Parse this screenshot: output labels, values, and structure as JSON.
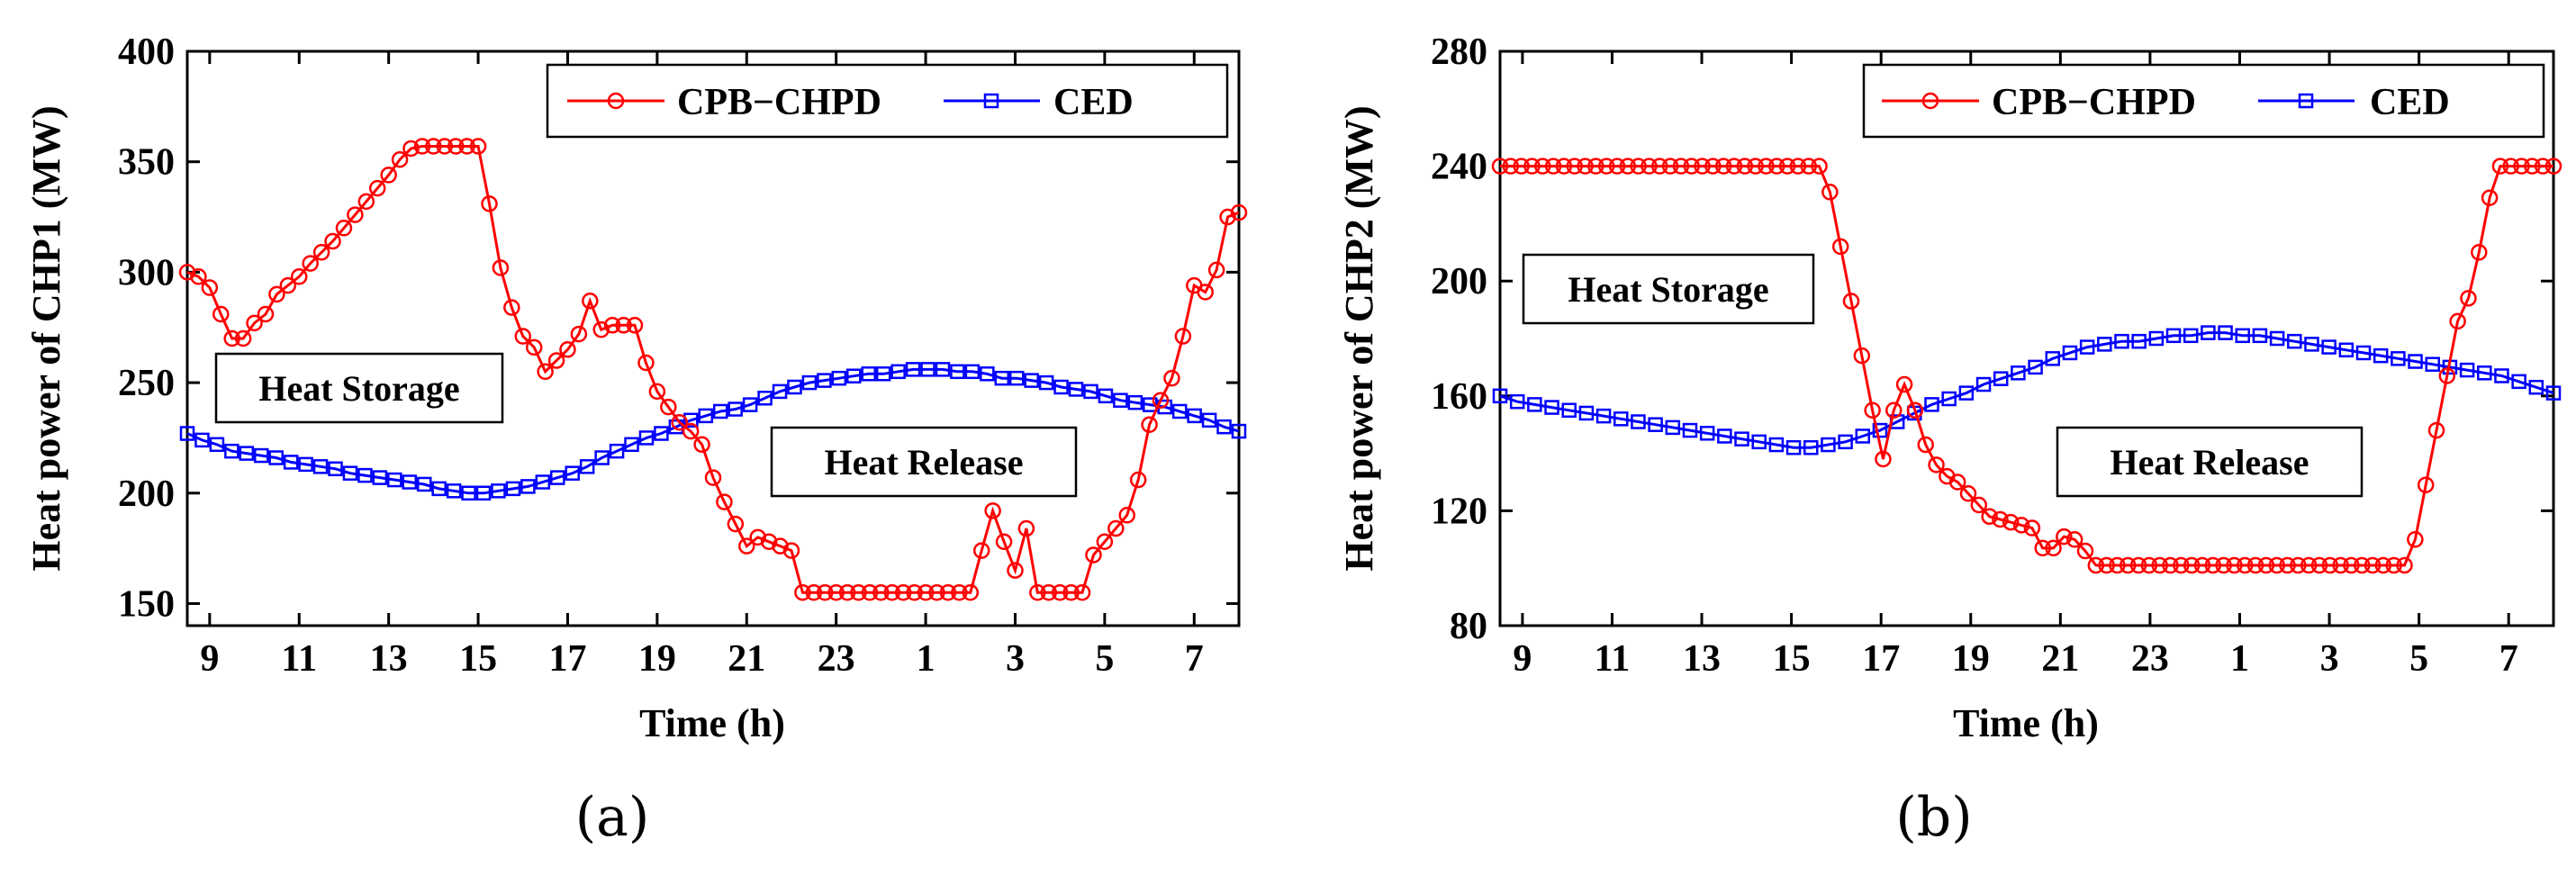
{
  "colors": {
    "cpb": "#ff0000",
    "ced": "#0000ff"
  },
  "chart_data": [
    {
      "type": "line",
      "subfigure": "(a)",
      "title": "",
      "xlabel": "Time (h)",
      "ylabel": "Heat power of CHP1 (MW)",
      "ylim": [
        140,
        400
      ],
      "yticks": [
        150,
        200,
        250,
        300,
        350,
        400
      ],
      "xticks": [
        "9",
        "11",
        "13",
        "15",
        "17",
        "19",
        "21",
        "23",
        "1",
        "3",
        "5",
        "7"
      ],
      "x_start_hour": 8.5,
      "x_step_hours": 0.25,
      "legend": [
        "CPB−CHPD",
        "CED"
      ],
      "annotations": [
        "Heat Storage",
        "Heat Release"
      ],
      "series": [
        {
          "name": "CPB−CHPD",
          "values": [
            300,
            298,
            293,
            281,
            270,
            270,
            277,
            281,
            290,
            294,
            298,
            304,
            309,
            314,
            320,
            326,
            332,
            338,
            344,
            351,
            356,
            357,
            357,
            357,
            357,
            357,
            357,
            331,
            302,
            284,
            271,
            266,
            255,
            260,
            265,
            272,
            287,
            274,
            276,
            276,
            276,
            259,
            246,
            239,
            232,
            228,
            222,
            207,
            196,
            186,
            176,
            180,
            178,
            176,
            174,
            155,
            155,
            155,
            155,
            155,
            155,
            155,
            155,
            155,
            155,
            155,
            155,
            155,
            155,
            155,
            155,
            174,
            192,
            178,
            165,
            184,
            155,
            155,
            155,
            155,
            155,
            172,
            178,
            184,
            190,
            206,
            231,
            242,
            252,
            271,
            294,
            291,
            301,
            325,
            327
          ]
        },
        {
          "name": "CED",
          "values": [
            227,
            224,
            222,
            219,
            218,
            217,
            216,
            214,
            213,
            212,
            211,
            209,
            208,
            207,
            206,
            205,
            204,
            202,
            201,
            200,
            200,
            201,
            202,
            203,
            205,
            207,
            209,
            212,
            216,
            219,
            222,
            225,
            227,
            230,
            233,
            235,
            237,
            238,
            240,
            243,
            246,
            248,
            250,
            251,
            252,
            253,
            254,
            254,
            255,
            256,
            256,
            256,
            255,
            255,
            254,
            252,
            252,
            251,
            250,
            248,
            247,
            246,
            244,
            242,
            241,
            240,
            239,
            237,
            235,
            233,
            230,
            228
          ]
        }
      ]
    },
    {
      "type": "line",
      "subfigure": "(b)",
      "title": "",
      "xlabel": "Time (h)",
      "ylabel": "Heat power of CHP2 (MW)",
      "ylim": [
        80,
        280
      ],
      "yticks": [
        80,
        120,
        160,
        200,
        240,
        280
      ],
      "xticks": [
        "9",
        "11",
        "13",
        "15",
        "17",
        "19",
        "21",
        "23",
        "1",
        "3",
        "5",
        "7"
      ],
      "x_start_hour": 8.5,
      "x_step_hours": 0.25,
      "legend": [
        "CPB−CHPD",
        "CED"
      ],
      "annotations": [
        "Heat Storage",
        "Heat Release"
      ],
      "series": [
        {
          "name": "CPB−CHPD",
          "values": [
            240,
            240,
            240,
            240,
            240,
            240,
            240,
            240,
            240,
            240,
            240,
            240,
            240,
            240,
            240,
            240,
            240,
            240,
            240,
            240,
            240,
            240,
            240,
            240,
            240,
            240,
            240,
            240,
            240,
            240,
            240,
            231,
            212,
            193,
            174,
            155,
            138,
            155,
            164,
            155,
            143,
            136,
            132,
            130,
            126,
            122,
            118,
            117,
            116,
            115,
            114,
            107,
            107,
            111,
            110,
            106,
            101,
            101,
            101,
            101,
            101,
            101,
            101,
            101,
            101,
            101,
            101,
            101,
            101,
            101,
            101,
            101,
            101,
            101,
            101,
            101,
            101,
            101,
            101,
            101,
            101,
            101,
            101,
            101,
            101,
            101,
            110,
            129,
            148,
            167,
            186,
            194,
            210,
            229,
            240,
            240,
            240,
            240,
            240,
            240
          ]
        },
        {
          "name": "CED",
          "values": [
            160,
            158,
            157,
            156,
            155,
            154,
            153,
            152,
            151,
            150,
            149,
            148,
            147,
            146,
            145,
            144,
            143,
            142,
            142,
            143,
            144,
            146,
            148,
            151,
            154,
            157,
            159,
            161,
            164,
            166,
            168,
            170,
            173,
            175,
            177,
            178,
            179,
            179,
            180,
            181,
            181,
            182,
            182,
            181,
            181,
            180,
            179,
            178,
            177,
            176,
            175,
            174,
            173,
            172,
            171,
            170,
            169,
            168,
            167,
            165,
            163,
            161
          ]
        }
      ]
    }
  ]
}
